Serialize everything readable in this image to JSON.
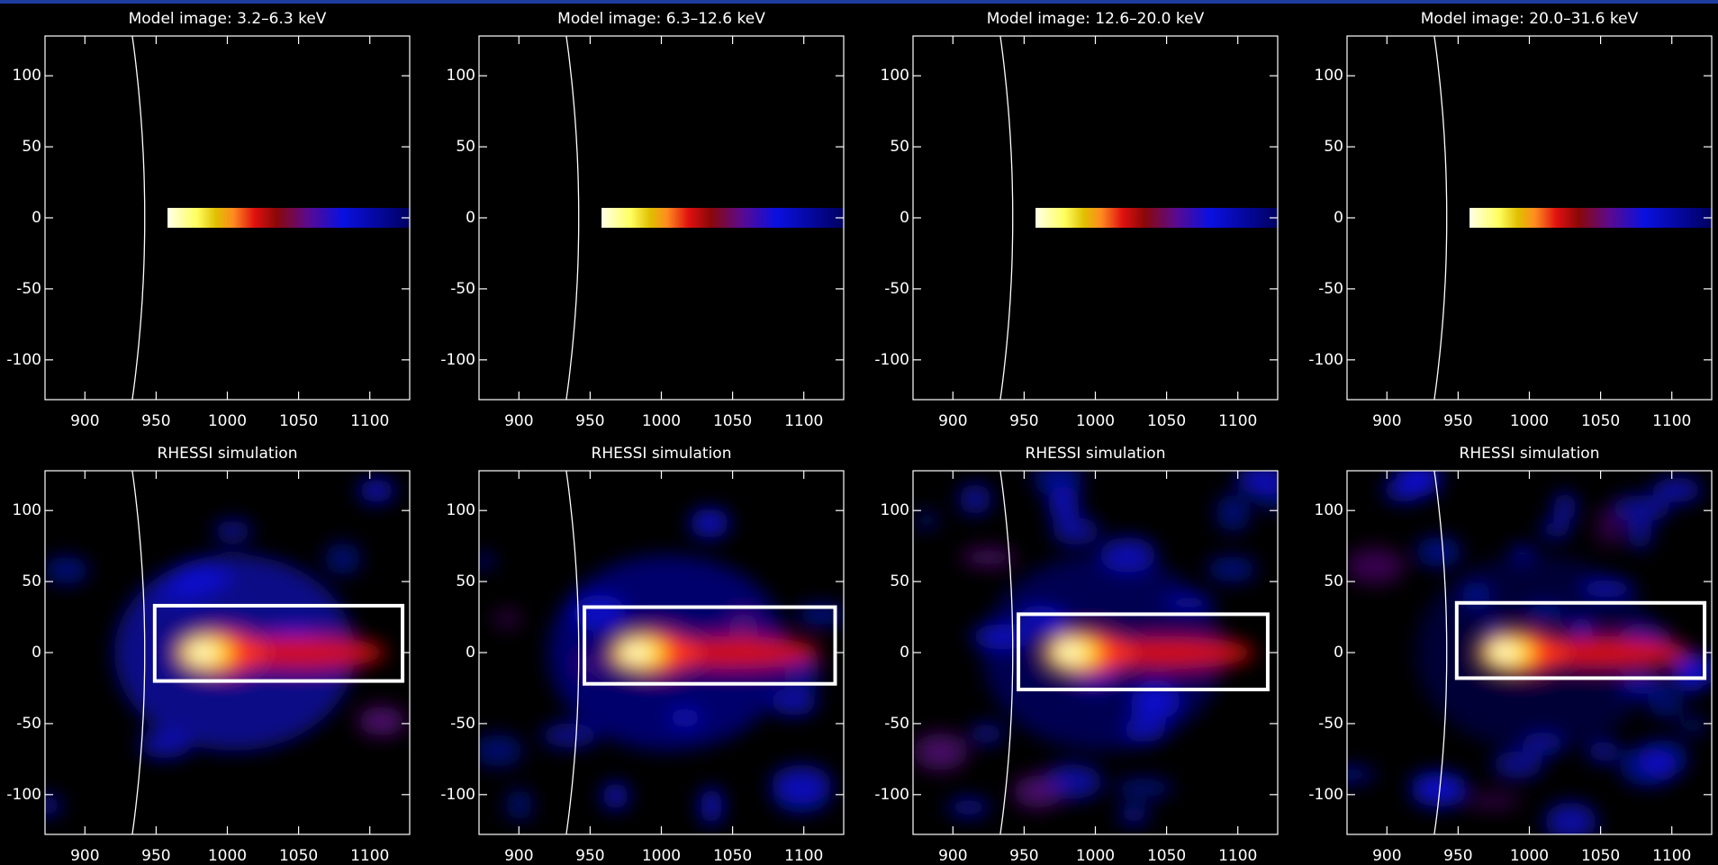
{
  "chart_data": [
    {
      "type": "model",
      "title": "Model image: 3.2–6.3 keV",
      "xlim": [
        872,
        1128
      ],
      "ylim": [
        -128,
        128
      ],
      "xticks": [
        900,
        950,
        1000,
        1050,
        1100
      ],
      "yticks": [
        -100,
        -50,
        0,
        50,
        100
      ],
      "limb_radius": 942,
      "source_x": [
        958,
        1128
      ],
      "source_y": [
        -7,
        7
      ]
    },
    {
      "type": "model",
      "title": "Model image: 6.3–12.6 keV",
      "xlim": [
        872,
        1128
      ],
      "ylim": [
        -128,
        128
      ],
      "xticks": [
        900,
        950,
        1000,
        1050,
        1100
      ],
      "yticks": [
        -100,
        -50,
        0,
        50,
        100
      ],
      "limb_radius": 942,
      "source_x": [
        958,
        1128
      ],
      "source_y": [
        -7,
        7
      ]
    },
    {
      "type": "model",
      "title": "Model image: 12.6–20.0 keV",
      "xlim": [
        872,
        1128
      ],
      "ylim": [
        -128,
        128
      ],
      "xticks": [
        900,
        950,
        1000,
        1050,
        1100
      ],
      "yticks": [
        -100,
        -50,
        0,
        50,
        100
      ],
      "limb_radius": 942,
      "source_x": [
        958,
        1128
      ],
      "source_y": [
        -7,
        7
      ]
    },
    {
      "type": "model",
      "title": "Model image: 20.0–31.6 keV",
      "xlim": [
        872,
        1128
      ],
      "ylim": [
        -128,
        128
      ],
      "xticks": [
        900,
        950,
        1000,
        1050,
        1100
      ],
      "yticks": [
        -100,
        -50,
        0,
        50,
        100
      ],
      "limb_radius": 942,
      "source_x": [
        958,
        1128
      ],
      "source_y": [
        -7,
        7
      ]
    },
    {
      "type": "simulation",
      "title": "RHESSI simulation",
      "xlim": [
        872,
        1128
      ],
      "ylim": [
        -128,
        128
      ],
      "xticks": [
        900,
        950,
        1000,
        1050,
        1100
      ],
      "yticks": [
        -100,
        -50,
        0,
        50,
        100
      ],
      "limb_radius": 942,
      "box_x": [
        949,
        1123
      ],
      "box_y": [
        -20,
        33
      ]
    },
    {
      "type": "simulation",
      "title": "RHESSI simulation",
      "xlim": [
        872,
        1128
      ],
      "ylim": [
        -128,
        128
      ],
      "xticks": [
        900,
        950,
        1000,
        1050,
        1100
      ],
      "yticks": [
        -100,
        -50,
        0,
        50,
        100
      ],
      "limb_radius": 942,
      "box_x": [
        946,
        1122
      ],
      "box_y": [
        -22,
        32
      ]
    },
    {
      "type": "simulation",
      "title": "RHESSI simulation",
      "xlim": [
        872,
        1128
      ],
      "ylim": [
        -128,
        128
      ],
      "xticks": [
        900,
        950,
        1000,
        1050,
        1100
      ],
      "yticks": [
        -100,
        -50,
        0,
        50,
        100
      ],
      "limb_radius": 942,
      "box_x": [
        946,
        1121
      ],
      "box_y": [
        -26,
        27
      ]
    },
    {
      "type": "simulation",
      "title": "RHESSI simulation",
      "xlim": [
        872,
        1128
      ],
      "ylim": [
        -128,
        128
      ],
      "xticks": [
        900,
        950,
        1000,
        1050,
        1100
      ],
      "yticks": [
        -100,
        -50,
        0,
        50,
        100
      ],
      "limb_radius": 942,
      "box_x": [
        949,
        1123
      ],
      "box_y": [
        -18,
        35
      ]
    }
  ]
}
